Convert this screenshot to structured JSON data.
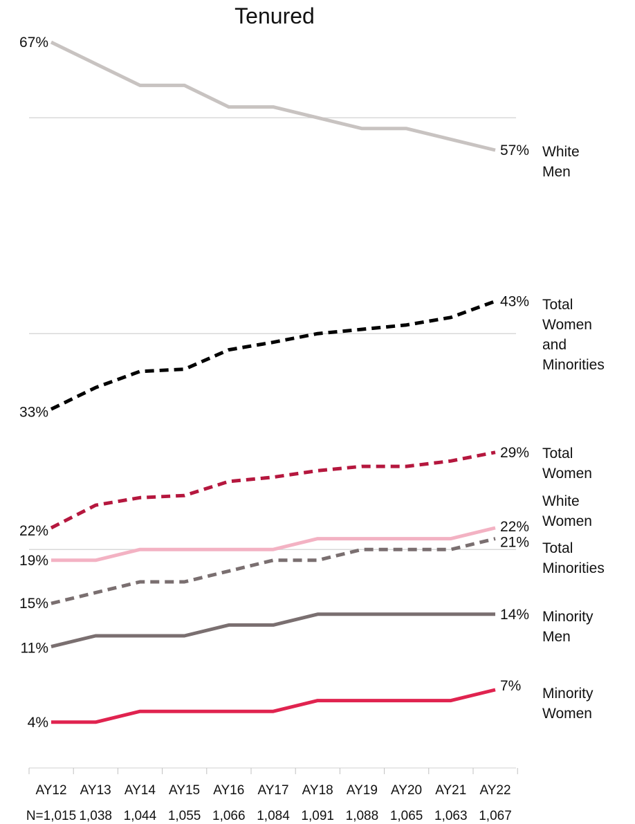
{
  "chart_data": {
    "type": "line",
    "title": "Tenured",
    "categories": [
      "AY12",
      "AY13",
      "AY14",
      "AY15",
      "AY16",
      "AY17",
      "AY18",
      "AY19",
      "AY20",
      "AY21",
      "AY22"
    ],
    "n_label_prefix": "N=",
    "n_values": [
      "1,015",
      "1,038",
      "1,044",
      "1,055",
      "1,066",
      "1,084",
      "1,091",
      "1,088",
      "1,065",
      "1,063",
      "1,067"
    ],
    "ylim": [
      0,
      70
    ],
    "gridlines": [
      20,
      40,
      60
    ],
    "grid": true,
    "series": [
      {
        "key": "white_men",
        "name_lines": [
          "White",
          "Men"
        ],
        "color": "#c8c3c1",
        "dashed": false,
        "values": [
          67,
          65,
          63,
          63,
          61,
          61,
          60,
          59,
          59,
          58,
          57
        ],
        "start_label": "67%",
        "end_label": "57%"
      },
      {
        "key": "total_women_minorities",
        "name_lines": [
          "Total",
          "Women",
          "and",
          "Minorities"
        ],
        "color": "#000000",
        "dashed": true,
        "values": [
          33,
          35,
          36.5,
          36.7,
          38.5,
          39.2,
          40,
          40.4,
          40.8,
          41.5,
          43
        ],
        "start_label": "33%",
        "end_label": "43%"
      },
      {
        "key": "total_women",
        "name_lines": [
          "Total",
          "Women"
        ],
        "color": "#b5173e",
        "dashed": true,
        "values": [
          22,
          24.1,
          24.8,
          25,
          26.3,
          26.7,
          27.3,
          27.7,
          27.7,
          28.2,
          29
        ],
        "start_label": "22%",
        "end_label": "29%"
      },
      {
        "key": "white_women",
        "name_lines": [
          "White",
          "Women"
        ],
        "color": "#f3b2c3",
        "dashed": false,
        "values": [
          19,
          19,
          20,
          20,
          20,
          20,
          21,
          21,
          21,
          21,
          22
        ],
        "start_label": "19%",
        "end_label": "22%"
      },
      {
        "key": "total_minorities",
        "name_lines": [
          "Total",
          "Minorities"
        ],
        "color": "#7a6f70",
        "dashed": true,
        "values": [
          15,
          16,
          17,
          17,
          18,
          19,
          19,
          20,
          20,
          20,
          21
        ],
        "start_label": "15%",
        "end_label": "21%"
      },
      {
        "key": "minority_men",
        "name_lines": [
          "Minority",
          "Men"
        ],
        "color": "#7a6f70",
        "dashed": false,
        "values": [
          11,
          12,
          12,
          12,
          13,
          13,
          14,
          14,
          14,
          14,
          14
        ],
        "start_label": "11%",
        "end_label": "14%"
      },
      {
        "key": "minority_women",
        "name_lines": [
          "Minority",
          "Women"
        ],
        "color": "#e0234f",
        "dashed": false,
        "values": [
          4,
          4,
          5,
          5,
          5,
          5,
          6,
          6,
          6,
          6,
          7
        ],
        "start_label": "4%",
        "end_label": "7%"
      }
    ]
  }
}
